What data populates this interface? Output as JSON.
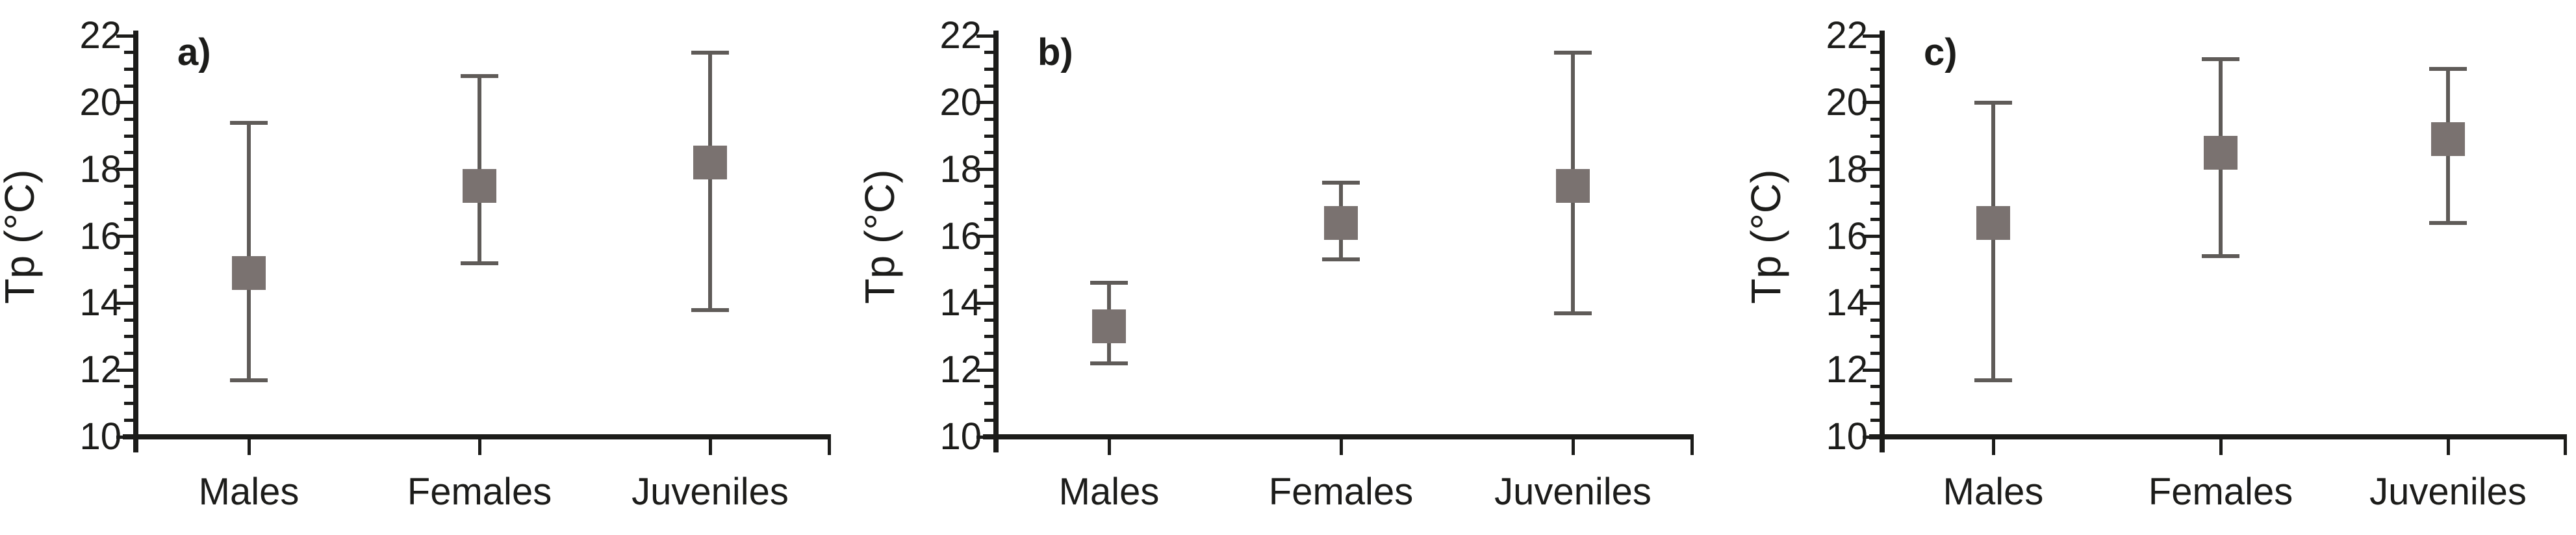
{
  "figure": {
    "background": "#ffffff"
  },
  "colors": {
    "axis": "#1c1c1a",
    "text": "#1c1c1a",
    "error_bar": "#5f5b58",
    "marker_fill": "#7a7270"
  },
  "chart_data": {
    "type": "scatter",
    "subtype": "mean-with-error-bars",
    "ylabel": "Tp (°C)",
    "ylim": [
      10,
      22
    ],
    "ytick_step": 2,
    "minor_tick_step": 0.5,
    "ytick_labels": [
      "10",
      "12",
      "14",
      "16",
      "18",
      "20",
      "22"
    ],
    "grid": "off",
    "legend": "none",
    "categories": [
      "Males",
      "Females",
      "Juveniles"
    ],
    "panels": [
      {
        "label": "a)",
        "ylabel": "Tp (°C)",
        "points": [
          {
            "category": "Males",
            "mean": 14.9,
            "lower": 11.7,
            "upper": 19.4
          },
          {
            "category": "Females",
            "mean": 17.5,
            "lower": 15.2,
            "upper": 20.8
          },
          {
            "category": "Juveniles",
            "mean": 18.2,
            "lower": 13.8,
            "upper": 21.5
          }
        ]
      },
      {
        "label": "b)",
        "ylabel": "Tp (°C)",
        "points": [
          {
            "category": "Males",
            "mean": 13.3,
            "lower": 12.2,
            "upper": 14.6
          },
          {
            "category": "Females",
            "mean": 16.4,
            "lower": 15.3,
            "upper": 17.6
          },
          {
            "category": "Juveniles",
            "mean": 17.5,
            "lower": 13.7,
            "upper": 21.5
          }
        ]
      },
      {
        "label": "c)",
        "ylabel": "Tp (°C)",
        "points": [
          {
            "category": "Males",
            "mean": 16.4,
            "lower": 11.7,
            "upper": 20.0
          },
          {
            "category": "Females",
            "mean": 18.5,
            "lower": 15.4,
            "upper": 21.3
          },
          {
            "category": "Juveniles",
            "mean": 18.9,
            "lower": 16.4,
            "upper": 21.0
          }
        ]
      }
    ]
  }
}
